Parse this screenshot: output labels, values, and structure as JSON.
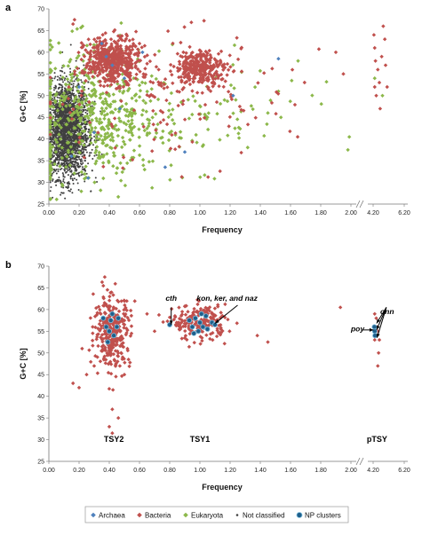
{
  "panels": [
    {
      "id": "a",
      "panel_label": "a",
      "chart_data": {
        "type": "scatter",
        "xlabel": "Frequency",
        "ylabel": "G+C [%]",
        "ylim": [
          25,
          70
        ],
        "yticks": [
          25,
          30,
          35,
          40,
          45,
          50,
          55,
          60,
          65,
          70
        ],
        "xlim_main": [
          0,
          2.0
        ],
        "xticks_main": [
          0.0,
          0.2,
          0.4,
          0.6,
          0.8,
          1.0,
          1.2,
          1.4,
          1.6,
          1.8,
          2.0
        ],
        "xlim_break": [
          4.2,
          6.2
        ],
        "xticks_break": [
          4.2,
          6.2
        ],
        "xtick_labels": [
          "0.00",
          "0.20",
          "0.40",
          "0.60",
          "0.80",
          "1.00",
          "1.20",
          "1.40",
          "1.60",
          "1.80",
          "2.00",
          "4.20",
          "6.20"
        ],
        "grid": false,
        "series": [
          {
            "name": "Not classified",
            "color": "#404040",
            "marker": "dot",
            "clusters": [
              {
                "x": 0.12,
                "y": 42,
                "sx": 0.07,
                "sy": 5.5,
                "n": 2600
              }
            ]
          },
          {
            "name": "Eukaryota",
            "color": "#8cb84a",
            "marker": "diamond",
            "clusters": [
              {
                "x": 0.3,
                "y": 45,
                "sx": 0.22,
                "sy": 8,
                "n": 520
              },
              {
                "x": 0.9,
                "y": 45,
                "sx": 0.4,
                "sy": 6,
                "n": 110
              }
            ],
            "points": [
              [
                1.05,
                45
              ],
              [
                1.45,
                46
              ],
              [
                1.98,
                37.5
              ],
              [
                1.65,
                58
              ],
              [
                4.8,
                50
              ],
              [
                4.3,
                54
              ],
              [
                1.52,
                51
              ]
            ]
          },
          {
            "name": "Bacteria",
            "color": "#c0504d",
            "marker": "diamond",
            "clusters": [
              {
                "x": 0.42,
                "y": 58,
                "sx": 0.09,
                "sy": 2.6,
                "n": 480
              },
              {
                "x": 1.0,
                "y": 56.5,
                "sx": 0.08,
                "sy": 2.0,
                "n": 280
              },
              {
                "x": 0.7,
                "y": 50,
                "sx": 0.45,
                "sy": 8,
                "n": 170
              }
            ],
            "points": [
              [
                0.17,
                67.5
              ],
              [
                0.16,
                66.5
              ],
              [
                0.6,
                62
              ],
              [
                1.9,
                60
              ],
              [
                1.95,
                55
              ],
              [
                4.25,
                64
              ],
              [
                4.3,
                61
              ],
              [
                4.35,
                58
              ],
              [
                4.5,
                56
              ],
              [
                4.6,
                53
              ],
              [
                4.4,
                50
              ],
              [
                4.65,
                47
              ],
              [
                4.85,
                66
              ],
              [
                4.95,
                63
              ],
              [
                4.75,
                59
              ],
              [
                5.0,
                57
              ],
              [
                5.1,
                52
              ],
              [
                4.3,
                52
              ]
            ]
          },
          {
            "name": "Archaea",
            "color": "#4f81bd",
            "marker": "diamond",
            "points": [
              [
                0.38,
                59
              ],
              [
                0.42,
                57
              ],
              [
                0.5,
                54
              ],
              [
                1.52,
                58.5
              ],
              [
                0.77,
                33.5
              ],
              [
                0.26,
                31
              ],
              [
                0.15,
                36
              ],
              [
                0.9,
                37
              ],
              [
                0.47,
                47
              ],
              [
                1.22,
                50
              ],
              [
                0.62,
                60
              ],
              [
                0.2,
                52
              ],
              [
                0.35,
                62
              ],
              [
                0.3,
                41.5
              ]
            ]
          }
        ]
      }
    },
    {
      "id": "b",
      "panel_label": "b",
      "chart_data": {
        "type": "scatter",
        "xlabel": "Frequency",
        "ylabel": "G+C [%]",
        "ylim": [
          25,
          70
        ],
        "yticks": [
          25,
          30,
          35,
          40,
          45,
          50,
          55,
          60,
          65,
          70
        ],
        "xlim_main": [
          0,
          2.0
        ],
        "xticks_main": [
          0.0,
          0.2,
          0.4,
          0.6,
          0.8,
          1.0,
          1.2,
          1.4,
          1.6,
          1.8,
          2.0
        ],
        "xlim_break": [
          4.2,
          6.2
        ],
        "xticks_break": [
          4.2,
          6.2
        ],
        "xtick_labels": [
          "0.00",
          "0.20",
          "0.40",
          "0.60",
          "0.80",
          "1.00",
          "1.20",
          "1.40",
          "1.60",
          "1.80",
          "2.00",
          "4.20",
          "6.20"
        ],
        "grid": false,
        "series": [
          {
            "name": "Bacteria",
            "color": "#c0504d",
            "marker": "diamond",
            "clusters": [
              {
                "x": 0.42,
                "y": 55,
                "sx": 0.06,
                "sy": 4.0,
                "n": 330
              },
              {
                "x": 1.0,
                "y": 57,
                "sx": 0.09,
                "sy": 2.0,
                "n": 210
              }
            ],
            "points": [
              [
                0.37,
                67.5
              ],
              [
                0.42,
                37
              ],
              [
                0.46,
                35
              ],
              [
                0.4,
                33
              ],
              [
                0.42,
                31.5
              ],
              [
                0.16,
                43
              ],
              [
                0.2,
                42
              ],
              [
                0.22,
                51
              ],
              [
                0.3,
                47
              ],
              [
                0.25,
                45
              ],
              [
                0.47,
                47
              ],
              [
                0.5,
                45
              ],
              [
                1.93,
                60.5
              ],
              [
                1.45,
                52.5
              ],
              [
                1.38,
                54
              ],
              [
                0.7,
                55
              ],
              [
                0.65,
                59
              ],
              [
                4.3,
                59
              ],
              [
                4.45,
                56
              ],
              [
                4.5,
                55
              ],
              [
                4.6,
                53
              ],
              [
                4.55,
                50
              ],
              [
                4.5,
                47
              ],
              [
                4.4,
                58
              ],
              [
                4.3,
                53
              ]
            ]
          },
          {
            "name": "NP clusters",
            "color": "#1f5f8b",
            "marker": "circle",
            "points": [
              [
                0.36,
                58
              ],
              [
                0.38,
                56
              ],
              [
                0.4,
                55
              ],
              [
                0.41,
                57.5
              ],
              [
                0.43,
                54
              ],
              [
                0.42,
                59
              ],
              [
                0.45,
                56
              ],
              [
                0.39,
                52.5
              ],
              [
                0.46,
                58
              ],
              [
                0.8,
                56.5
              ],
              [
                0.93,
                57.5
              ],
              [
                0.95,
                56
              ],
              [
                0.97,
                58
              ],
              [
                0.99,
                55
              ],
              [
                1.0,
                57
              ],
              [
                1.02,
                56
              ],
              [
                1.04,
                58.5
              ],
              [
                1.05,
                55.5
              ],
              [
                1.08,
                57
              ],
              [
                1.1,
                56.5
              ],
              [
                0.96,
                54.5
              ],
              [
                1.01,
                59
              ],
              [
                4.28,
                56
              ],
              [
                4.3,
                55
              ],
              [
                4.32,
                54
              ]
            ]
          }
        ],
        "annotations": [
          {
            "text": "cth",
            "x": 0.81,
            "y": 62
          },
          {
            "text": "kon, ker, and naz",
            "x": 1.18,
            "y": 62
          },
          {
            "text": "onn",
            "x": 5.1,
            "y": 59
          },
          {
            "text": "poy",
            "x": 3.2,
            "y": 55
          }
        ],
        "cluster_labels": [
          {
            "text": "TSY2",
            "x": 0.43,
            "y": 29.5
          },
          {
            "text": "TSY1",
            "x": 1.0,
            "y": 29.5
          },
          {
            "text": "pTSY",
            "x": 4.45,
            "y": 29.5
          }
        ]
      }
    }
  ],
  "legend": {
    "position": "bottom",
    "entries": [
      {
        "label": "Archaea",
        "color": "#4f81bd",
        "marker": "diamond"
      },
      {
        "label": "Bacteria",
        "color": "#c0504d",
        "marker": "diamond"
      },
      {
        "label": "Eukaryota",
        "color": "#8cb84a",
        "marker": "diamond"
      },
      {
        "label": "Not classified",
        "color": "#404040",
        "marker": "dot"
      },
      {
        "label": "NP clusters",
        "color": "#1f5f8b",
        "marker": "circle"
      }
    ]
  }
}
